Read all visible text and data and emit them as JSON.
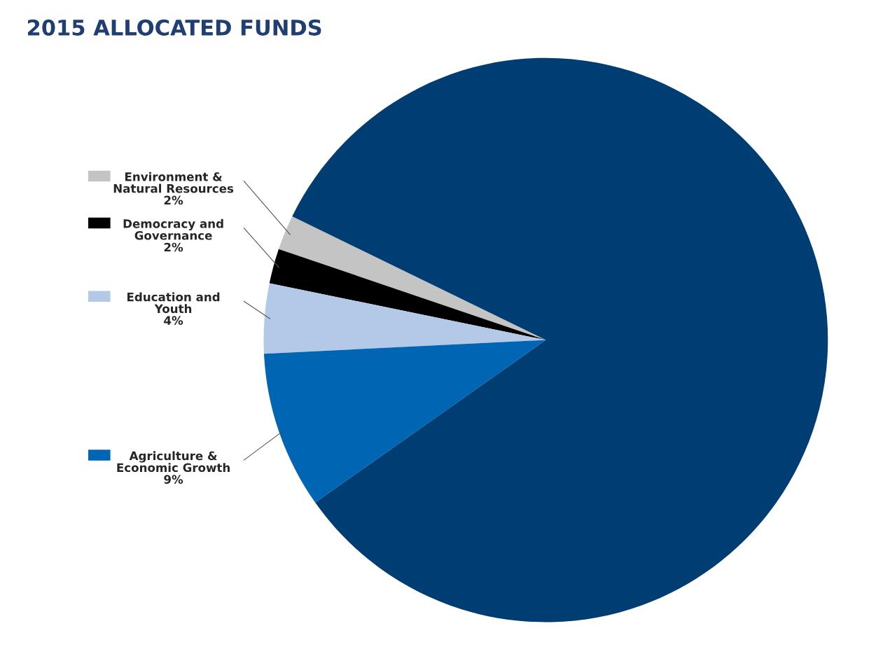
{
  "chart_data": {
    "type": "pie",
    "title": "2015 ALLOCATED FUNDS",
    "categories": [
      "Environment &\nNatural Resources",
      "Democracy and\nGovernance",
      "Education and\nYouth",
      "Agriculture &\nEconomic Growth",
      null
    ],
    "values": [
      2,
      2,
      4,
      9,
      83
    ],
    "legend": "left",
    "value_labels": [
      "2%",
      "2%",
      "4%",
      "9%",
      null
    ],
    "colors": [
      "#c4c4c4",
      "#000000",
      "#b4c9e8",
      "#0066b3",
      "#003d73"
    ]
  }
}
